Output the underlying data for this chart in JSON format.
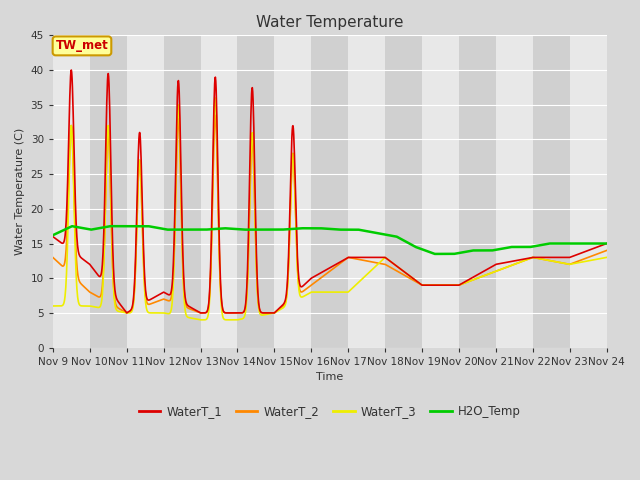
{
  "title": "Water Temperature",
  "ylabel": "Water Temperature (C)",
  "xlabel": "Time",
  "ylim": [
    0,
    45
  ],
  "yticks": [
    0,
    5,
    10,
    15,
    20,
    25,
    30,
    35,
    40,
    45
  ],
  "n_days": 15,
  "xtick_labels": [
    "Nov 9",
    "Nov 10",
    "Nov 11",
    "Nov 12",
    "Nov 13",
    "Nov 14",
    "Nov 15",
    "Nov 16",
    "Nov 17",
    "Nov 18",
    "Nov 19",
    "Nov 20",
    "Nov 21",
    "Nov 22",
    "Nov 23",
    "Nov 24"
  ],
  "fig_bg_color": "#d8d8d8",
  "plot_bg_color": "#e0e0e0",
  "band_light": "#e8e8e8",
  "band_dark": "#d0d0d0",
  "grid_color": "#ffffff",
  "annotation_text": "TW_met",
  "annotation_color": "#cc0000",
  "annotation_bg": "#ffff99",
  "annotation_border": "#cc9900",
  "colors": {
    "WaterT_1": "#dd0000",
    "WaterT_2": "#ff8800",
    "WaterT_3": "#eeee00",
    "H2O_Temp": "#00cc00"
  },
  "spike_peaks_W1": [
    40.0,
    39.5,
    31.0,
    38.5,
    39.0,
    37.5,
    32.0,
    0,
    0
  ],
  "spike_peaks_W2": [
    32.0,
    31.0,
    27.0,
    33.0,
    33.5,
    30.0,
    28.0,
    0,
    0
  ],
  "spike_peaks_W3": [
    32.0,
    32.0,
    27.0,
    35.0,
    36.0,
    31.0,
    28.0,
    0,
    0
  ],
  "spike_days": [
    0.5,
    1.5,
    2.35,
    3.4,
    4.4,
    5.4,
    6.5,
    7.5,
    8.4
  ],
  "base_W1": [
    16,
    12,
    5,
    8,
    5,
    5,
    5,
    10,
    13,
    13,
    9,
    9,
    12,
    13,
    13,
    15
  ],
  "base_W2": [
    13,
    8,
    5,
    7,
    5,
    5,
    5,
    9,
    13,
    12,
    9,
    9,
    11,
    13,
    12,
    14
  ],
  "base_W3": [
    6,
    6,
    5,
    5,
    4,
    4,
    5,
    8,
    8,
    13,
    9,
    9,
    11,
    13,
    12,
    13
  ],
  "h2o_vals": [
    16.2,
    17.5,
    17.0,
    17.5,
    17.5,
    17.5,
    17.0,
    17.0,
    17.0,
    17.2,
    17.0,
    17.0,
    17.0,
    17.2,
    17.2,
    17.0,
    17.0,
    16.5,
    16.0,
    14.5,
    13.5,
    13.5,
    14.0,
    14.0,
    14.5,
    14.5,
    15.0,
    15.0,
    15.0,
    15.0
  ]
}
